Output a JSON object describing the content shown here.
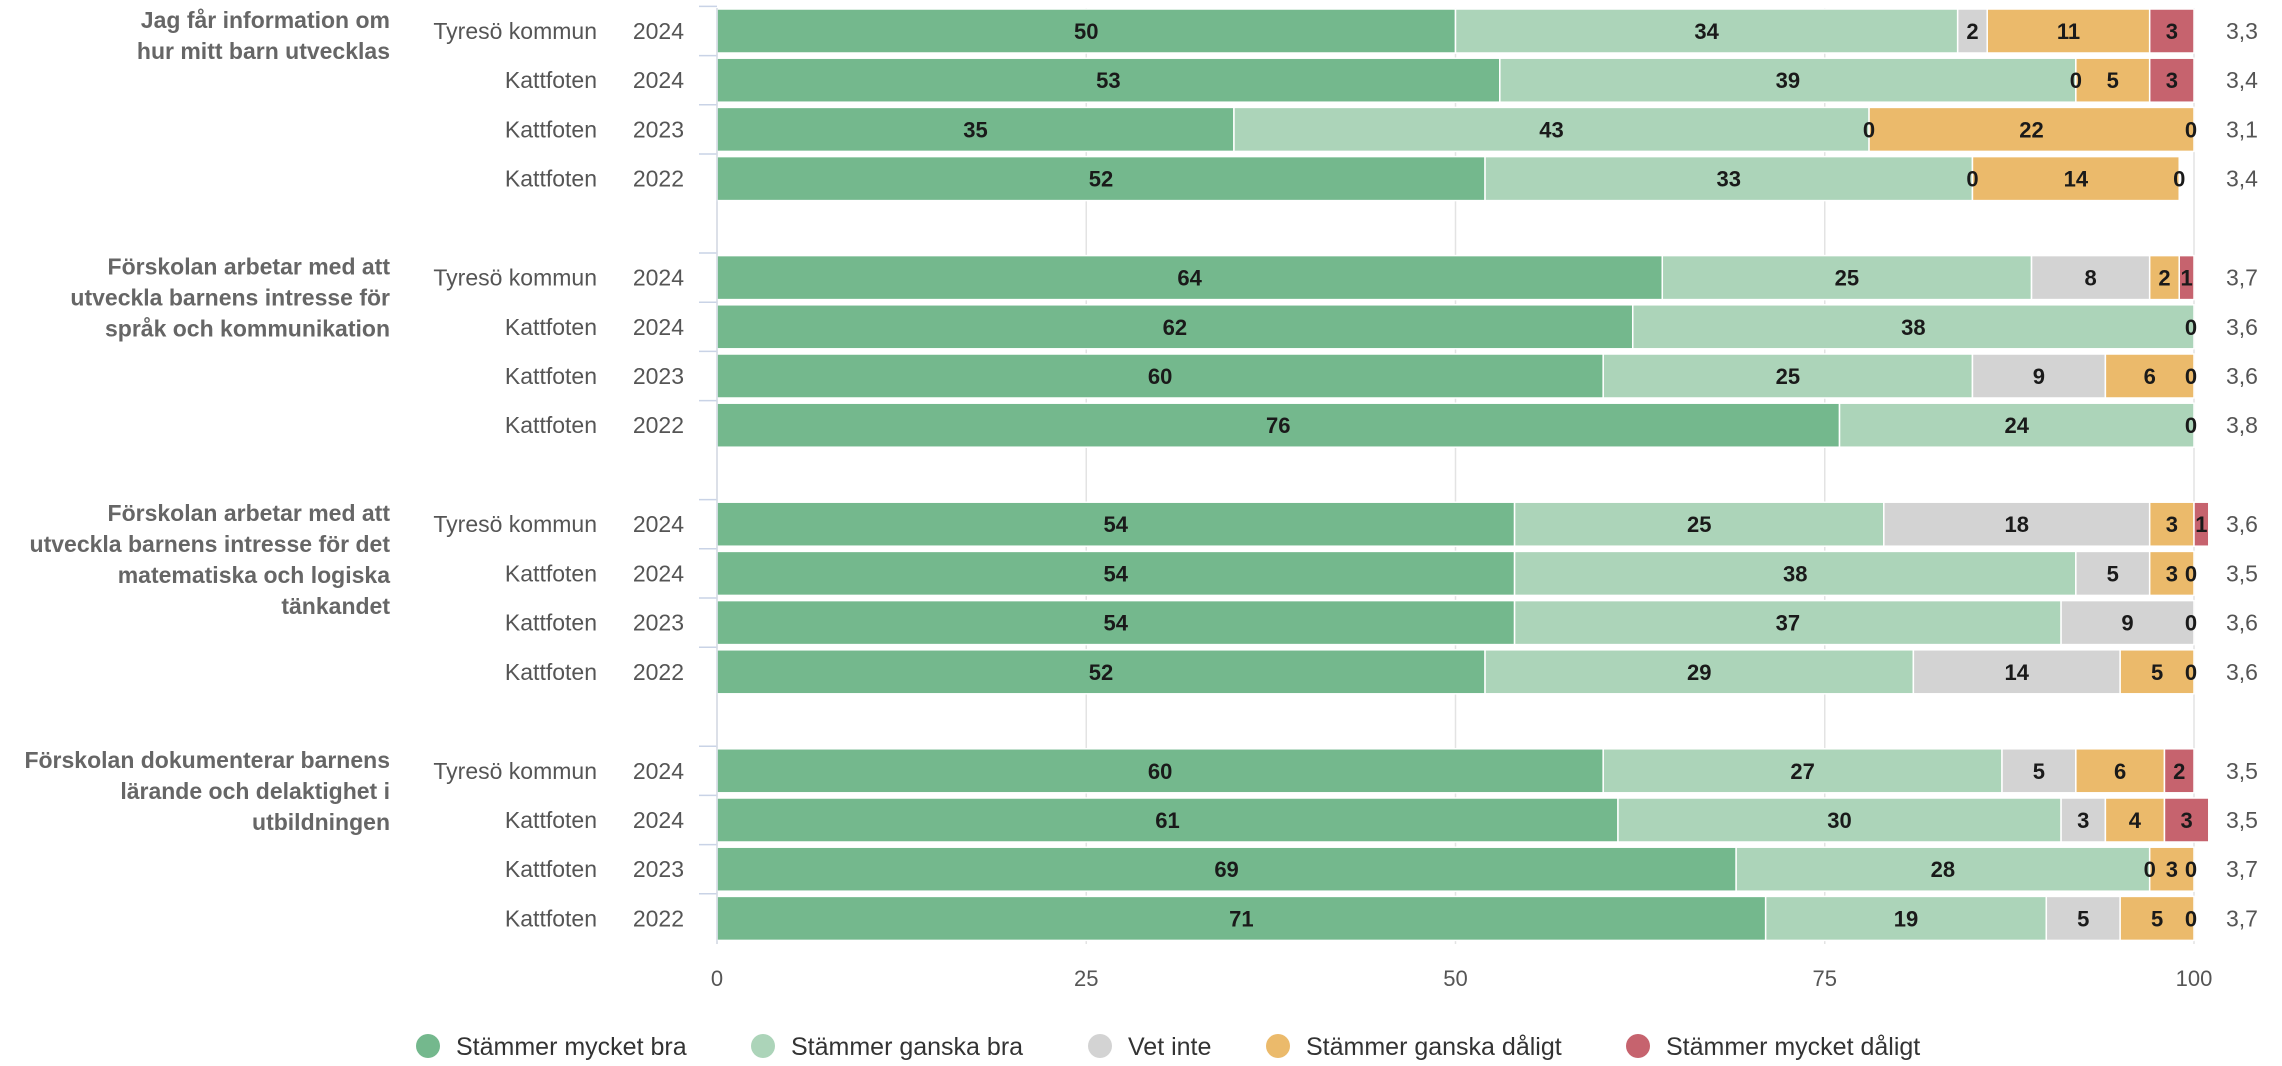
{
  "chart_data": {
    "type": "bar",
    "orientation": "horizontal",
    "stacked": true,
    "xlim": [
      0,
      100
    ],
    "x_ticks": [
      "0",
      "25",
      "50",
      "75",
      "100"
    ],
    "grid": true,
    "legend_placement": "bottom",
    "series": [
      {
        "name": "Stämmer mycket bra",
        "color": "#74b88d"
      },
      {
        "name": "Stämmer ganska bra",
        "color": "#acd4b9"
      },
      {
        "name": "Vet inte",
        "color": "#d3d3d3"
      },
      {
        "name": "Stämmer ganska dåligt",
        "color": "#ebba6b"
      },
      {
        "name": "Stämmer mycket dåligt",
        "color": "#c6636e"
      }
    ],
    "groups": [
      {
        "question": [
          "Jag får information om",
          "hur mitt barn utvecklas"
        ],
        "rows": [
          {
            "org": "Tyresö kommun",
            "year": "2024",
            "values": [
              50,
              34,
              2,
              11,
              3
            ],
            "labels": [
              "50",
              "34",
              "2",
              "11",
              "3"
            ],
            "avg": "3,3"
          },
          {
            "org": "Kattfoten",
            "year": "2024",
            "values": [
              53,
              39,
              0,
              5,
              3
            ],
            "labels": [
              "53",
              "39",
              "0",
              "5",
              "3"
            ],
            "avg": "3,4"
          },
          {
            "org": "Kattfoten",
            "year": "2023",
            "values": [
              35,
              43,
              0,
              22,
              0
            ],
            "labels": [
              "35",
              "43",
              "0",
              "22",
              "0"
            ],
            "avg": "3,1"
          },
          {
            "org": "Kattfoten",
            "year": "2022",
            "values": [
              52,
              33,
              0,
              14,
              0
            ],
            "labels": [
              "52",
              "33",
              "0",
              "14",
              "0"
            ],
            "avg": "3,4"
          }
        ]
      },
      {
        "question": [
          "Förskolan arbetar med att",
          "utveckla barnens intresse för",
          "språk och kommunikation"
        ],
        "rows": [
          {
            "org": "Tyresö kommun",
            "year": "2024",
            "values": [
              64,
              25,
              8,
              2,
              1
            ],
            "labels": [
              "64",
              "25",
              "8",
              "2",
              "1"
            ],
            "avg": "3,7"
          },
          {
            "org": "Kattfoten",
            "year": "2024",
            "values": [
              62,
              38,
              0,
              0,
              0
            ],
            "labels": [
              "62",
              "38",
              "",
              "",
              "0"
            ],
            "avg": "3,6"
          },
          {
            "org": "Kattfoten",
            "year": "2023",
            "values": [
              60,
              25,
              9,
              6,
              0
            ],
            "labels": [
              "60",
              "25",
              "9",
              "6",
              "0"
            ],
            "avg": "3,6"
          },
          {
            "org": "Kattfoten",
            "year": "2022",
            "values": [
              76,
              24,
              0,
              0,
              0
            ],
            "labels": [
              "76",
              "24",
              "",
              "",
              "0"
            ],
            "avg": "3,8"
          }
        ]
      },
      {
        "question": [
          "Förskolan arbetar med att",
          "utveckla barnens intresse för det",
          "matematiska och logiska",
          "tänkandet"
        ],
        "rows": [
          {
            "org": "Tyresö kommun",
            "year": "2024",
            "values": [
              54,
              25,
              18,
              3,
              1
            ],
            "labels": [
              "54",
              "25",
              "18",
              "3",
              "1"
            ],
            "avg": "3,6"
          },
          {
            "org": "Kattfoten",
            "year": "2024",
            "values": [
              54,
              38,
              5,
              3,
              0
            ],
            "labels": [
              "54",
              "38",
              "5",
              "3",
              "0"
            ],
            "avg": "3,5"
          },
          {
            "org": "Kattfoten",
            "year": "2023",
            "values": [
              54,
              37,
              9,
              0,
              0
            ],
            "labels": [
              "54",
              "37",
              "9",
              "",
              "0"
            ],
            "avg": "3,6"
          },
          {
            "org": "Kattfoten",
            "year": "2022",
            "values": [
              52,
              29,
              14,
              5,
              0
            ],
            "labels": [
              "52",
              "29",
              "14",
              "5",
              "0"
            ],
            "avg": "3,6"
          }
        ]
      },
      {
        "question": [
          "Förskolan dokumenterar barnens",
          "lärande och delaktighet i",
          "utbildningen"
        ],
        "rows": [
          {
            "org": "Tyresö kommun",
            "year": "2024",
            "values": [
              60,
              27,
              5,
              6,
              2
            ],
            "labels": [
              "60",
              "27",
              "5",
              "6",
              "2"
            ],
            "avg": "3,5"
          },
          {
            "org": "Kattfoten",
            "year": "2024",
            "values": [
              61,
              30,
              3,
              4,
              3
            ],
            "labels": [
              "61",
              "30",
              "3",
              "4",
              "3"
            ],
            "avg": "3,5"
          },
          {
            "org": "Kattfoten",
            "year": "2023",
            "values": [
              69,
              28,
              0,
              3,
              0
            ],
            "labels": [
              "69",
              "28",
              "0",
              "3",
              "0"
            ],
            "avg": "3,7"
          },
          {
            "org": "Kattfoten",
            "year": "2022",
            "values": [
              71,
              19,
              5,
              5,
              0
            ],
            "labels": [
              "71",
              "19",
              "5",
              "5",
              "0"
            ],
            "avg": "3,7"
          }
        ]
      }
    ]
  }
}
